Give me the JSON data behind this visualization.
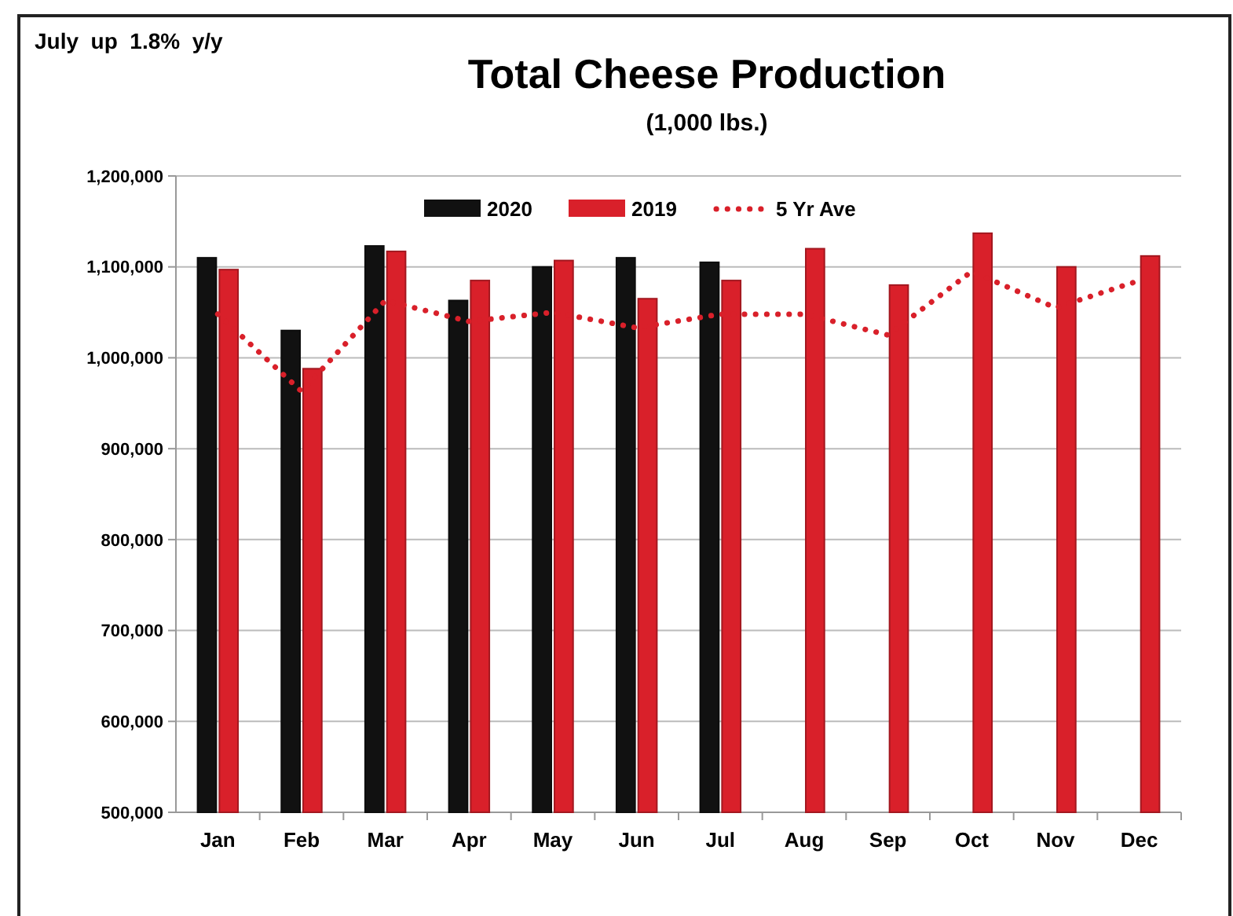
{
  "chart_data": {
    "type": "bar",
    "title": "Total Cheese Production",
    "subtitle": "(1,000 lbs.)",
    "annotations": [
      "July  up  1.8%  y/y"
    ],
    "categories": [
      "Jan",
      "Feb",
      "Mar",
      "Apr",
      "May",
      "Jun",
      "Jul",
      "Aug",
      "Sep",
      "Oct",
      "Nov",
      "Dec"
    ],
    "series": [
      {
        "name": "2020",
        "color": "#111111",
        "values": [
          1110000,
          1030000,
          1123000,
          1063000,
          1100000,
          1110000,
          1105000,
          null,
          null,
          null,
          null,
          null
        ]
      },
      {
        "name": "2019",
        "color": "#d9202a",
        "values": [
          1097000,
          988000,
          1117000,
          1085000,
          1107000,
          1065000,
          1085000,
          1120000,
          1080000,
          1137000,
          1100000,
          1112000
        ]
      },
      {
        "name": "5 Yr Ave",
        "type": "line",
        "color": "#d9202a",
        "line_style": "dotted",
        "values": [
          1048000,
          963000,
          1063000,
          1040000,
          1050000,
          1033000,
          1048000,
          1048000,
          1025000,
          1095000,
          1055000,
          1085000
        ]
      }
    ],
    "ylim": [
      500000,
      1200000
    ],
    "yticks": [
      {
        "value": 500000,
        "label": "500,000"
      },
      {
        "value": 600000,
        "label": "600,000"
      },
      {
        "value": 700000,
        "label": "700,000"
      },
      {
        "value": 800000,
        "label": "800,000"
      },
      {
        "value": 900000,
        "label": "900,000"
      },
      {
        "value": 1000000,
        "label": "1,000,000"
      },
      {
        "value": 1100000,
        "label": "1,100,000"
      },
      {
        "value": 1200000,
        "label": "1,200,000"
      }
    ],
    "grid": "y",
    "legend": "top"
  }
}
